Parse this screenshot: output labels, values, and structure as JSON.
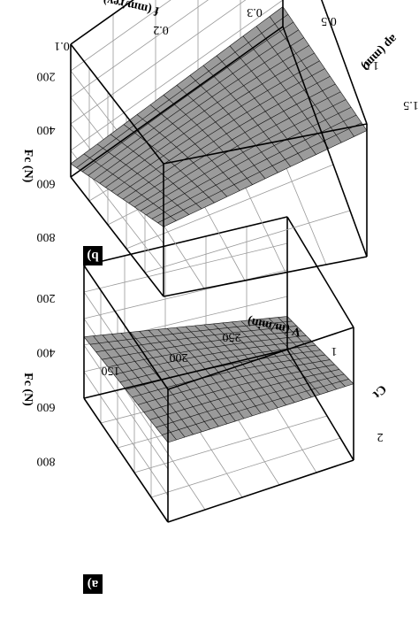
{
  "chart_data": [
    {
      "type": "surface",
      "panel_label": "a)",
      "x_axis": {
        "label": "V (m/min)",
        "ticks": [
          "150",
          "200",
          "250"
        ]
      },
      "y_axis": {
        "label": "Ct",
        "ticks": [
          "1",
          "2"
        ]
      },
      "z_axis": {
        "label": "Fc (N)",
        "ticks": [
          "200",
          "400",
          "600",
          "800"
        ],
        "range": [
          100,
          900
        ]
      },
      "corner_values": {
        "front_left": 580,
        "front_right": 560,
        "back_left": 470,
        "back_right": 300
      }
    },
    {
      "type": "surface",
      "panel_label": "b)",
      "x_axis": {
        "label": "f (mm/rev)",
        "ticks": [
          "0.1",
          "0.2",
          "0.3",
          "0.5"
        ]
      },
      "y_axis": {
        "label": "ap (mm)",
        "ticks": [
          "1.0",
          "1.5"
        ]
      },
      "z_axis": {
        "label": "Fc (N)",
        "ticks": [
          "200",
          "400",
          "600",
          "800"
        ],
        "range": [
          100,
          900
        ]
      },
      "corner_values": {
        "front_left": 520,
        "front_right": 860,
        "back_left": 180,
        "back_right": 220
      }
    }
  ]
}
